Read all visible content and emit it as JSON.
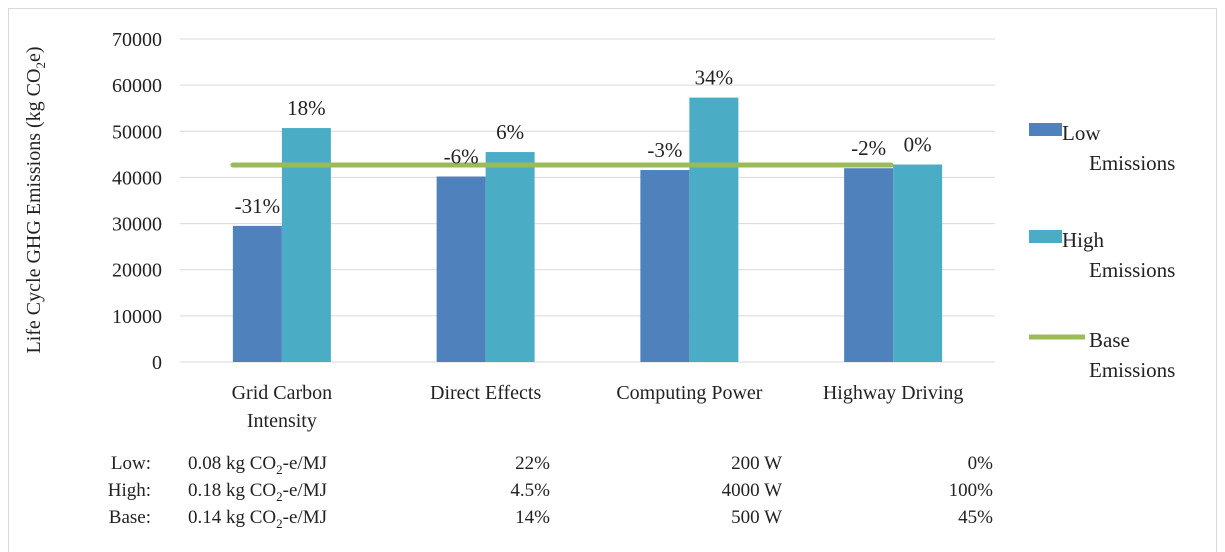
{
  "chart_data": {
    "type": "bar",
    "ylabel_parts": [
      "Life Cycle GHG Emissions (kg CO",
      "2",
      "e)"
    ],
    "ylim": [
      0,
      70000
    ],
    "yticks": [
      0,
      10000,
      20000,
      30000,
      40000,
      50000,
      60000,
      70000
    ],
    "categories": [
      {
        "lines": [
          "Grid Carbon",
          "Intensity"
        ]
      },
      {
        "lines": [
          "Direct Effects"
        ]
      },
      {
        "lines": [
          "Computing Power"
        ]
      },
      {
        "lines": [
          "Highway Driving"
        ]
      }
    ],
    "series": [
      {
        "name_lines": [
          "Low",
          "Emissions"
        ],
        "color": "#4f81bd",
        "values": [
          29500,
          40200,
          41600,
          42000
        ],
        "labels": [
          "-31%",
          "-6%",
          "-3%",
          "-2%"
        ]
      },
      {
        "name_lines": [
          "High",
          "Emissions"
        ],
        "color": "#4bacc6",
        "values": [
          50700,
          45500,
          57300,
          42800
        ],
        "labels": [
          "18%",
          "6%",
          "34%",
          "0%"
        ]
      }
    ],
    "base": {
      "name_lines": [
        "Base",
        "Emissions"
      ],
      "color": "#9bbb59",
      "value": 42700
    },
    "legend_position": "right",
    "grid": true
  },
  "params_table": {
    "rows": [
      {
        "label": "Low:",
        "cells": [
          {
            "parts": [
              "0.08 kg CO",
              "2",
              "-e/MJ"
            ]
          },
          {
            "parts": [
              "22%"
            ]
          },
          {
            "parts": [
              "200 W"
            ]
          },
          {
            "parts": [
              "0%"
            ]
          }
        ]
      },
      {
        "label": "High:",
        "cells": [
          {
            "parts": [
              "0.18 kg CO",
              "2",
              "-e/MJ"
            ]
          },
          {
            "parts": [
              "4.5%"
            ]
          },
          {
            "parts": [
              "4000 W"
            ]
          },
          {
            "parts": [
              "100%"
            ]
          }
        ]
      },
      {
        "label": "Base:",
        "cells": [
          {
            "parts": [
              "0.14 kg CO",
              "2",
              "-e/MJ"
            ]
          },
          {
            "parts": [
              "14%"
            ]
          },
          {
            "parts": [
              "500 W"
            ]
          },
          {
            "parts": [
              "45%"
            ]
          }
        ]
      }
    ]
  }
}
